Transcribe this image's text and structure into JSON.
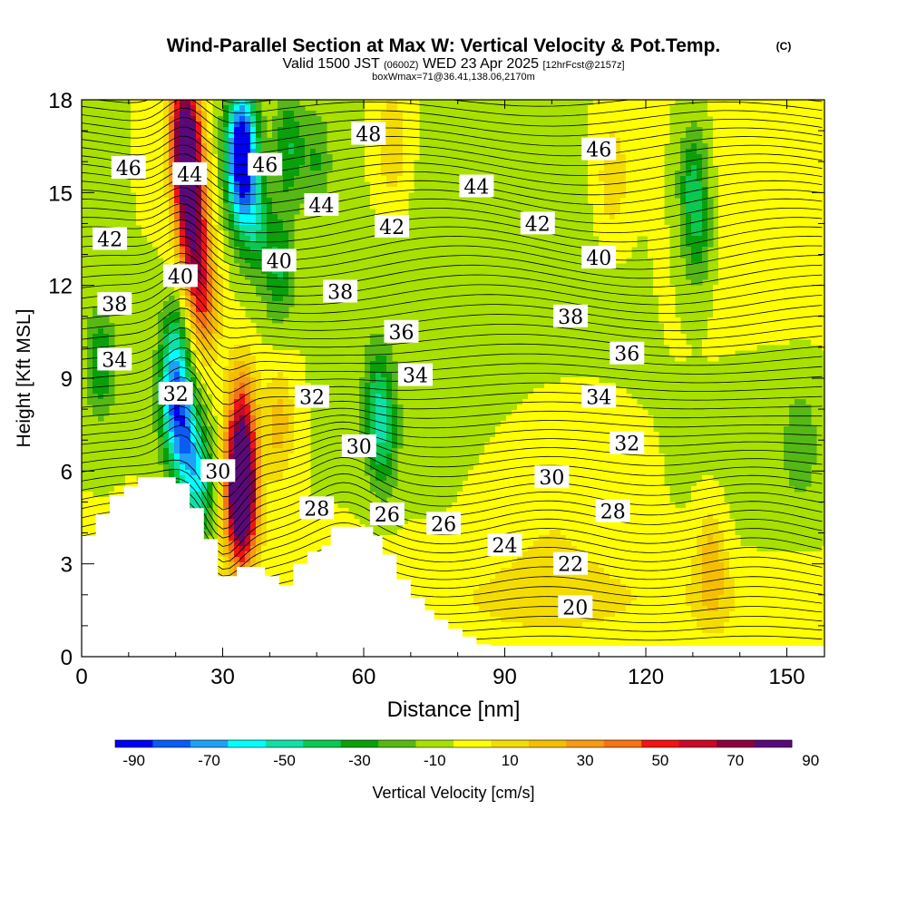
{
  "header": {
    "title_main": "Wind-Parallel Section at Max W: Vertical Velocity & Pot.Temp.",
    "title_tag": "(C)",
    "sub_a": "Valid 1500 JST",
    "sub_b": "(0600Z)",
    "sub_c": "WED 23 Apr 2025",
    "sub_d": "[12hrFcst@2157z]",
    "sub_e": "boxWmax=71@36.41,138.06,2170m"
  },
  "chart_data": {
    "type": "contour-section",
    "xlabel": "Distance [nm]",
    "ylabel": "Height [Kft MSL]",
    "xlim": [
      0,
      158
    ],
    "ylim": [
      0,
      18
    ],
    "x_ticks": [
      "0",
      "30",
      "60",
      "90",
      "120",
      "150"
    ],
    "y_ticks": [
      "0",
      "3",
      "6",
      "9",
      "12",
      "15",
      "18"
    ],
    "colorbar": {
      "label": "Vertical Velocity [cm/s]",
      "tick_labels": [
        "-90",
        "-70",
        "-50",
        "-30",
        "-10",
        "10",
        "30",
        "50",
        "70",
        "90"
      ],
      "colors": [
        "#0000f0",
        "#0a5cf5",
        "#1ea0f5",
        "#00ffff",
        "#10e0a8",
        "#0ac850",
        "#0aa00a",
        "#55b815",
        "#a8e000",
        "#ffff00",
        "#f5dc00",
        "#f5be00",
        "#f59b14",
        "#f57314",
        "#f01414",
        "#c80a28",
        "#8c003c",
        "#5a0a78"
      ]
    },
    "terrain_kft": [
      [
        0,
        3.9
      ],
      [
        3,
        3.9
      ],
      [
        3,
        4.6
      ],
      [
        6,
        4.6
      ],
      [
        6,
        5.2
      ],
      [
        9,
        5.2
      ],
      [
        9,
        5.5
      ],
      [
        12,
        5.5
      ],
      [
        12,
        5.8
      ],
      [
        20,
        5.8
      ],
      [
        20,
        5.6
      ],
      [
        23,
        5.6
      ],
      [
        23,
        4.8
      ],
      [
        26,
        4.8
      ],
      [
        26,
        3.8
      ],
      [
        29,
        3.8
      ],
      [
        29,
        2.6
      ],
      [
        33,
        2.6
      ],
      [
        33,
        2.9
      ],
      [
        39,
        2.9
      ],
      [
        39,
        2.6
      ],
      [
        42,
        2.6
      ],
      [
        42,
        2.3
      ],
      [
        45,
        2.3
      ],
      [
        45,
        3.0
      ],
      [
        48,
        3.0
      ],
      [
        48,
        3.4
      ],
      [
        51,
        3.4
      ],
      [
        51,
        3.6
      ],
      [
        53,
        3.6
      ],
      [
        53,
        4.2
      ],
      [
        62,
        4.2
      ],
      [
        62,
        3.9
      ],
      [
        64,
        3.9
      ],
      [
        64,
        3.3
      ],
      [
        67,
        3.3
      ],
      [
        67,
        2.5
      ],
      [
        70,
        2.5
      ],
      [
        70,
        1.9
      ],
      [
        73,
        1.9
      ],
      [
        73,
        1.5
      ],
      [
        75,
        1.5
      ],
      [
        75,
        1.2
      ],
      [
        78,
        1.2
      ],
      [
        78,
        0.9
      ],
      [
        81,
        0.9
      ],
      [
        81,
        0.65
      ],
      [
        84,
        0.65
      ],
      [
        84,
        0.4
      ],
      [
        87,
        0.4
      ],
      [
        87,
        0.35
      ],
      [
        158,
        0.35
      ]
    ],
    "w_blobs": [
      {
        "x": 37,
        "y": 14,
        "w": -30
      },
      {
        "x": 44,
        "y": 16.5,
        "w": -30
      },
      {
        "x": 42,
        "y": 12.6,
        "w": -30
      },
      {
        "x": 34,
        "y": 16.8,
        "w": -70
      },
      {
        "x": 34,
        "y": 15.3,
        "w": -50
      },
      {
        "x": 22,
        "y": 17,
        "w": 90
      },
      {
        "x": 23,
        "y": 15,
        "w": 70
      },
      {
        "x": 24,
        "y": 13,
        "w": 50
      },
      {
        "x": 26,
        "y": 11.3,
        "w": 40
      },
      {
        "x": 20,
        "y": 10,
        "w": -30
      },
      {
        "x": 19.5,
        "y": 8.3,
        "w": -50
      },
      {
        "x": 22,
        "y": 7,
        "w": -50
      },
      {
        "x": 25,
        "y": 5.5,
        "w": -40
      },
      {
        "x": 4,
        "y": 9.5,
        "w": -30
      },
      {
        "x": 34,
        "y": 6,
        "w": 80
      },
      {
        "x": 34,
        "y": 4.5,
        "w": 70
      },
      {
        "x": 34,
        "y": 8,
        "w": 40
      },
      {
        "x": 42,
        "y": 7.5,
        "w": 25
      },
      {
        "x": 64,
        "y": 7,
        "w": -30
      },
      {
        "x": 63,
        "y": 8.5,
        "w": -25
      },
      {
        "x": 50,
        "y": 16,
        "w": -20
      },
      {
        "x": 66,
        "y": 16.5,
        "w": 20
      },
      {
        "x": 113,
        "y": 15.5,
        "w": 20
      },
      {
        "x": 130,
        "y": 15.5,
        "w": -30
      },
      {
        "x": 131,
        "y": 13.5,
        "w": -25
      },
      {
        "x": 134,
        "y": 3,
        "w": 25
      },
      {
        "x": 153,
        "y": 7,
        "w": -10
      }
    ],
    "theta_labels": [
      {
        "text": "46",
        "x": 10,
        "y": 15.8
      },
      {
        "text": "44",
        "x": 23,
        "y": 15.6
      },
      {
        "text": "46",
        "x": 39,
        "y": 15.9
      },
      {
        "text": "48",
        "x": 61,
        "y": 16.9
      },
      {
        "text": "46",
        "x": 110,
        "y": 16.4
      },
      {
        "text": "44",
        "x": 51,
        "y": 14.6
      },
      {
        "text": "44",
        "x": 84,
        "y": 15.2
      },
      {
        "text": "42",
        "x": 6,
        "y": 13.5
      },
      {
        "text": "42",
        "x": 66,
        "y": 13.9
      },
      {
        "text": "42",
        "x": 97,
        "y": 14.0
      },
      {
        "text": "40",
        "x": 21,
        "y": 12.3
      },
      {
        "text": "40",
        "x": 42,
        "y": 12.8
      },
      {
        "text": "40",
        "x": 110,
        "y": 12.9
      },
      {
        "text": "38",
        "x": 7,
        "y": 11.4
      },
      {
        "text": "38",
        "x": 55,
        "y": 11.8
      },
      {
        "text": "38",
        "x": 104,
        "y": 11.0
      },
      {
        "text": "36",
        "x": 68,
        "y": 10.5
      },
      {
        "text": "36",
        "x": 116,
        "y": 9.8
      },
      {
        "text": "34",
        "x": 7,
        "y": 9.6
      },
      {
        "text": "34",
        "x": 71,
        "y": 9.1
      },
      {
        "text": "34",
        "x": 110,
        "y": 8.4
      },
      {
        "text": "32",
        "x": 20,
        "y": 8.5
      },
      {
        "text": "32",
        "x": 49,
        "y": 8.4
      },
      {
        "text": "32",
        "x": 116,
        "y": 6.9
      },
      {
        "text": "30",
        "x": 59,
        "y": 6.8
      },
      {
        "text": "30",
        "x": 29,
        "y": 6.0
      },
      {
        "text": "30",
        "x": 100,
        "y": 5.8
      },
      {
        "text": "28",
        "x": 50,
        "y": 4.8
      },
      {
        "text": "28",
        "x": 113,
        "y": 4.7
      },
      {
        "text": "26",
        "x": 65,
        "y": 4.6
      },
      {
        "text": "26",
        "x": 77,
        "y": 4.3
      },
      {
        "text": "24",
        "x": 90,
        "y": 3.6
      },
      {
        "text": "22",
        "x": 104,
        "y": 3.0
      },
      {
        "text": "20",
        "x": 105,
        "y": 1.6
      }
    ]
  }
}
